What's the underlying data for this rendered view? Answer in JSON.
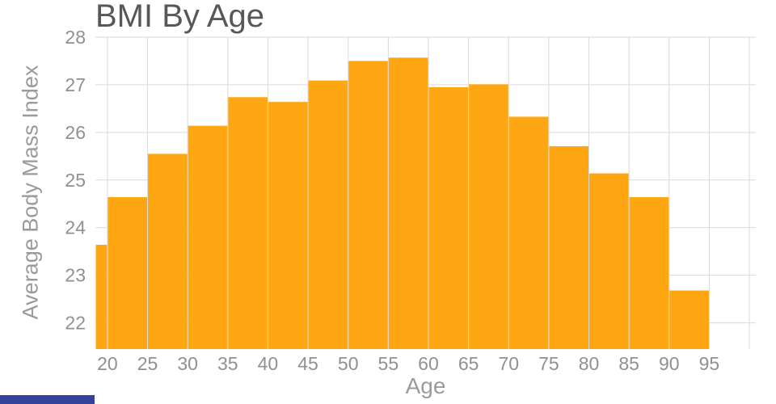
{
  "chart_data": {
    "type": "bar",
    "title": "BMI By Age",
    "xlabel": "Age",
    "ylabel": "Average Body Mass Index",
    "bar_color": "#ffa713",
    "grid_color": "#d9d9d9",
    "tick_color": "#909090",
    "title_color": "#58585b",
    "axis_label_color": "#9a9a9a",
    "bottom_strip_color": "#33439c",
    "xlim": [
      18.5,
      100.8
    ],
    "ylim": [
      21.45,
      28.0
    ],
    "grid": true,
    "legend": "none",
    "x_ticks": [
      20,
      25,
      30,
      35,
      40,
      45,
      50,
      55,
      60,
      65,
      70,
      75,
      80,
      85,
      90,
      95
    ],
    "x_gridlines": [
      20,
      25,
      30,
      35,
      40,
      45,
      50,
      55,
      60,
      65,
      70,
      75,
      80,
      85,
      90,
      95,
      100
    ],
    "y_ticks": [
      22,
      23,
      24,
      25,
      26,
      27,
      28
    ],
    "bars": [
      {
        "x0": 18.5,
        "x1": 20,
        "value": 23.64
      },
      {
        "x0": 20,
        "x1": 25,
        "value": 24.64
      },
      {
        "x0": 25,
        "x1": 30,
        "value": 25.55
      },
      {
        "x0": 30,
        "x1": 35,
        "value": 26.14
      },
      {
        "x0": 35,
        "x1": 40,
        "value": 26.74
      },
      {
        "x0": 40,
        "x1": 45,
        "value": 26.64
      },
      {
        "x0": 45,
        "x1": 50,
        "value": 27.09
      },
      {
        "x0": 50,
        "x1": 55,
        "value": 27.5
      },
      {
        "x0": 55,
        "x1": 60,
        "value": 27.57
      },
      {
        "x0": 60,
        "x1": 65,
        "value": 26.95
      },
      {
        "x0": 65,
        "x1": 70,
        "value": 27.01
      },
      {
        "x0": 70,
        "x1": 75,
        "value": 26.33
      },
      {
        "x0": 75,
        "x1": 80,
        "value": 25.71
      },
      {
        "x0": 80,
        "x1": 85,
        "value": 25.14
      },
      {
        "x0": 85,
        "x1": 90,
        "value": 24.64
      },
      {
        "x0": 90,
        "x1": 95,
        "value": 22.68
      }
    ]
  }
}
